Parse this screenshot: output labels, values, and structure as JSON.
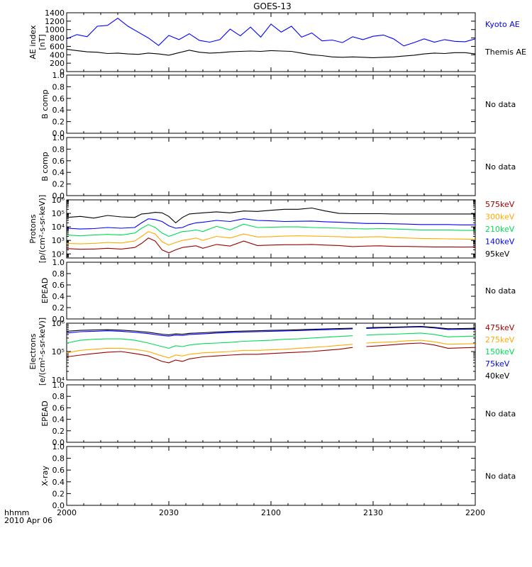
{
  "title": "GOES-13",
  "time_axis": {
    "ticks": [
      "2000",
      "2030",
      "2100",
      "2130",
      "2200"
    ],
    "corner_label_1": "hhmm",
    "corner_label_2": "2010 Apr 06"
  },
  "colors": {
    "black": "#000000",
    "blue": "#0000ff",
    "green": "#00dd55",
    "orange": "#ffaa00",
    "darkred": "#990000"
  },
  "chart_data": [
    {
      "type": "line",
      "panel": "ae_index",
      "ylabel": [
        "AE index",
        "[nT]"
      ],
      "ylim": [
        0,
        1400
      ],
      "yticks": [
        "0",
        "200",
        "400",
        "600",
        "800",
        "1000",
        "1200",
        "1400"
      ],
      "x": [
        0,
        3,
        6,
        9,
        12,
        15,
        18,
        21,
        24,
        27,
        30,
        33,
        36,
        39,
        42,
        45,
        48,
        51,
        54,
        57,
        60,
        63,
        66,
        69,
        72,
        75,
        78,
        81,
        84,
        87,
        90,
        93,
        96,
        99,
        102,
        105,
        108,
        111,
        114,
        117,
        120
      ],
      "xlim": [
        0,
        120
      ],
      "series": [
        {
          "name": "Kyoto AE",
          "color": "blue",
          "values": [
            780,
            880,
            830,
            1080,
            1100,
            1270,
            1080,
            940,
            800,
            620,
            860,
            760,
            900,
            740,
            700,
            760,
            1010,
            850,
            1060,
            820,
            1130,
            940,
            1080,
            820,
            920,
            730,
            750,
            690,
            830,
            760,
            840,
            870,
            780,
            610,
            690,
            780,
            700,
            760,
            720,
            710,
            780
          ]
        },
        {
          "name": "Themis AE",
          "color": "black",
          "values": [
            530,
            500,
            470,
            460,
            430,
            440,
            420,
            410,
            440,
            420,
            390,
            450,
            510,
            460,
            440,
            450,
            470,
            480,
            490,
            480,
            500,
            490,
            480,
            440,
            400,
            380,
            350,
            340,
            350,
            340,
            330,
            340,
            350,
            370,
            390,
            420,
            440,
            430,
            450,
            450,
            420
          ]
        }
      ]
    },
    {
      "type": "line",
      "panel": "b_comp_1",
      "ylabel": [
        "B comp"
      ],
      "ylim": [
        0,
        1
      ],
      "yticks": [
        "0.0",
        "0.2",
        "0.4",
        "0.6",
        "0.8",
        "1.0"
      ],
      "series": [],
      "annotation": "No data"
    },
    {
      "type": "line",
      "panel": "b_comp_2",
      "ylabel": [
        "B comp"
      ],
      "ylim": [
        0,
        1
      ],
      "yticks": [
        "0.0",
        "0.2",
        "0.4",
        "0.6",
        "0.8",
        "1.0"
      ],
      "series": [],
      "annotation": "No data"
    },
    {
      "type": "line",
      "panel": "protons",
      "ylabel": [
        "Protons",
        "[p/(cm²-s-sr-keV)]"
      ],
      "yscale": "log",
      "ylim": [
        50,
        1000000
      ],
      "yticks": [
        "10²",
        "10³",
        "10⁴",
        "10⁵",
        "10⁶"
      ],
      "x": [
        0,
        4,
        8,
        12,
        16,
        20,
        22,
        24,
        26,
        28,
        30,
        32,
        34,
        36,
        38,
        40,
        44,
        48,
        52,
        56,
        60,
        64,
        68,
        72,
        76,
        80,
        84,
        88,
        92,
        96,
        100,
        104,
        108,
        112,
        116,
        120
      ],
      "xlim": [
        0,
        120
      ],
      "series": [
        {
          "name": "575keV",
          "color": "darkred",
          "values": [
            250,
            220,
            230,
            260,
            230,
            300,
            600,
            1500,
            900,
            200,
            120,
            200,
            300,
            350,
            400,
            260,
            500,
            380,
            900,
            420,
            450,
            480,
            480,
            500,
            450,
            420,
            350,
            380,
            400,
            360,
            360,
            340,
            330,
            330,
            320,
            330
          ]
        },
        {
          "name": "300keV",
          "color": "orange",
          "values": [
            600,
            550,
            600,
            700,
            650,
            900,
            2000,
            4500,
            3000,
            800,
            450,
            700,
            1000,
            1200,
            1500,
            1000,
            2000,
            1500,
            3000,
            1800,
            1900,
            2100,
            2200,
            2100,
            2000,
            1900,
            1700,
            1800,
            1900,
            1600,
            1500,
            1400,
            1350,
            1300,
            1250,
            1200
          ]
        },
        {
          "name": "210keV",
          "color": "green",
          "values": [
            2500,
            2200,
            2500,
            2800,
            2500,
            3500,
            8000,
            15000,
            9000,
            3500,
            2000,
            3000,
            4500,
            5000,
            6000,
            4500,
            11000,
            6000,
            16000,
            9000,
            9500,
            10000,
            10000,
            9000,
            8500,
            8000,
            7500,
            7000,
            7500,
            7000,
            6500,
            6000,
            6000,
            6000,
            5500,
            5500
          ]
        },
        {
          "name": "140keV",
          "color": "blue",
          "values": [
            8000,
            7000,
            7500,
            9000,
            8000,
            9000,
            20000,
            40000,
            35000,
            25000,
            12000,
            8000,
            9000,
            15000,
            20000,
            22000,
            30000,
            25000,
            40000,
            30000,
            28000,
            25000,
            26000,
            27000,
            24000,
            22000,
            20000,
            18000,
            18000,
            17000,
            16000,
            15000,
            15000,
            15000,
            14000,
            14000
          ]
        },
        {
          "name": "95keV",
          "color": "black",
          "values": [
            50000,
            60000,
            45000,
            70000,
            55000,
            50000,
            90000,
            100000,
            120000,
            110000,
            60000,
            20000,
            50000,
            90000,
            100000,
            110000,
            130000,
            110000,
            150000,
            140000,
            170000,
            200000,
            200000,
            250000,
            150000,
            100000,
            95000,
            95000,
            95000,
            90000,
            90000,
            90000,
            90000,
            90000,
            90000,
            90000
          ]
        }
      ]
    },
    {
      "type": "line",
      "panel": "epead_1",
      "ylabel": [
        "EPEAD"
      ],
      "ylim": [
        0,
        1
      ],
      "yticks": [
        "0.0",
        "0.2",
        "0.4",
        "0.6",
        "0.8",
        "1.0"
      ],
      "series": [],
      "annotation": "No data"
    },
    {
      "type": "line",
      "panel": "electrons",
      "ylabel": [
        "Electrons",
        "[e/(cm²-s-sr-keV)]"
      ],
      "yscale": "log",
      "ylim": [
        10000,
        1000000
      ],
      "yticks": [
        "10⁴",
        "10⁵",
        "10⁶"
      ],
      "x": [
        0,
        4,
        8,
        12,
        16,
        20,
        24,
        28,
        30,
        32,
        34,
        36,
        40,
        44,
        48,
        52,
        56,
        60,
        64,
        68,
        72,
        76,
        80,
        84,
        86,
        88,
        92,
        96,
        100,
        104,
        108,
        112,
        116,
        120
      ],
      "xlim": [
        0,
        120
      ],
      "series": [
        {
          "name": "475keV",
          "color": "darkred",
          "values": [
            65000,
            75000,
            85000,
            95000,
            100000,
            85000,
            70000,
            45000,
            40000,
            50000,
            45000,
            55000,
            65000,
            70000,
            75000,
            80000,
            80000,
            85000,
            90000,
            95000,
            100000,
            110000,
            120000,
            140000,
            null,
            150000,
            160000,
            175000,
            190000,
            200000,
            170000,
            130000,
            135000,
            140000
          ]
        },
        {
          "name": "275keV",
          "color": "orange",
          "values": [
            90000,
            110000,
            120000,
            130000,
            130000,
            120000,
            100000,
            70000,
            60000,
            75000,
            70000,
            80000,
            90000,
            95000,
            100000,
            110000,
            110000,
            115000,
            120000,
            130000,
            140000,
            150000,
            165000,
            180000,
            null,
            200000,
            210000,
            220000,
            240000,
            250000,
            220000,
            180000,
            185000,
            190000
          ]
        },
        {
          "name": "150keV",
          "color": "green",
          "values": [
            200000,
            250000,
            270000,
            280000,
            280000,
            250000,
            200000,
            150000,
            130000,
            160000,
            150000,
            170000,
            190000,
            200000,
            210000,
            230000,
            240000,
            250000,
            270000,
            280000,
            300000,
            320000,
            340000,
            360000,
            null,
            380000,
            400000,
            410000,
            430000,
            450000,
            400000,
            330000,
            340000,
            350000
          ]
        },
        {
          "name": "75keV",
          "color": "blue",
          "values": [
            450000,
            500000,
            520000,
            540000,
            520000,
            480000,
            430000,
            370000,
            350000,
            380000,
            370000,
            400000,
            420000,
            450000,
            470000,
            490000,
            500000,
            520000,
            530000,
            550000,
            570000,
            590000,
            610000,
            630000,
            null,
            650000,
            680000,
            700000,
            720000,
            740000,
            680000,
            600000,
            610000,
            620000
          ]
        },
        {
          "name": "40keV",
          "color": "black",
          "values": [
            520000,
            560000,
            580000,
            590000,
            570000,
            530000,
            480000,
            410000,
            390000,
            420000,
            410000,
            440000,
            460000,
            490000,
            510000,
            530000,
            540000,
            560000,
            570000,
            590000,
            610000,
            630000,
            650000,
            670000,
            null,
            690000,
            710000,
            730000,
            750000,
            770000,
            710000,
            640000,
            650000,
            660000
          ]
        }
      ]
    },
    {
      "type": "line",
      "panel": "epead_2",
      "ylabel": [
        "EPEAD"
      ],
      "ylim": [
        0,
        1
      ],
      "yticks": [
        "0.0",
        "0.2",
        "0.4",
        "0.6",
        "0.8",
        "1.0"
      ],
      "series": [],
      "annotation": "No data"
    },
    {
      "type": "line",
      "panel": "x_ray",
      "ylabel": [
        "X-ray"
      ],
      "ylim": [
        0,
        1
      ],
      "yticks": [
        "0.0",
        "0.2",
        "0.4",
        "0.6",
        "0.8",
        "1.0"
      ],
      "series": [],
      "annotation": "No data"
    }
  ]
}
